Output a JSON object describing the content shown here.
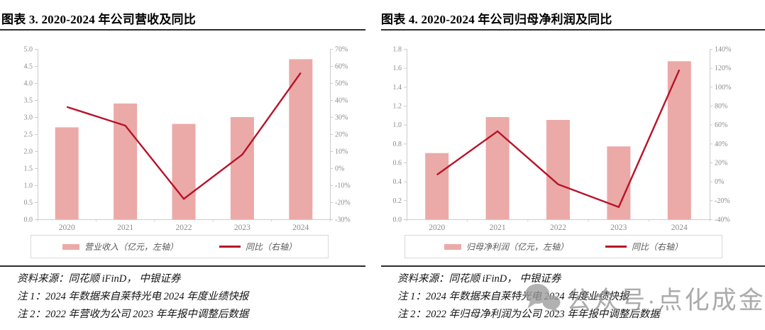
{
  "watermark": {
    "text": "公众号·点化成金"
  },
  "colors": {
    "bar": "#ebaaa7",
    "line": "#b81228",
    "axis": "#cccccc",
    "tick_text": "#8c8c8c",
    "title_text": "#000000",
    "note_text": "#141414",
    "rule_dark": "#2e2e2e",
    "legend_border": "#d9d9d9",
    "legend_text": "#595959",
    "watermark": "#949494"
  },
  "panels": [
    {
      "title": "图表 3. 2020-2024 年公司营收及同比",
      "legend": [
        {
          "label": "营业收入（亿元，左轴）",
          "type": "bar"
        },
        {
          "label": "同比（右轴）",
          "type": "line"
        }
      ],
      "source": "资料来源：同花顺 iFinD，  中银证券",
      "notes": [
        "注 1：2024 年数据来自莱特光电 2024 年度业绩快报",
        "注 2：2022 年营收为公司 2023 年年报中调整后数据"
      ]
    },
    {
      "title": "图表 4. 2020-2024 年公司归母净利润及同比",
      "legend": [
        {
          "label": "归母净利润（亿元，左轴）",
          "type": "bar"
        },
        {
          "label": "同比（右轴）",
          "type": "line"
        }
      ],
      "source": "资料来源：同花顺 iFinD，  中银证券",
      "notes": [
        "注 1：2024 年数据来自莱特光电 2024 年度业绩快报",
        "注 2：2022 年归母净利润为公司 2023 年年报中调整后数据"
      ]
    }
  ],
  "chart_data": [
    {
      "type": "bar+line",
      "title": "图表 3. 2020-2024 年公司营收及同比",
      "categories": [
        "2020",
        "2021",
        "2022",
        "2023",
        "2024"
      ],
      "series": [
        {
          "name": "营业收入（亿元，左轴）",
          "type": "bar",
          "axis": "left",
          "unit": "亿元",
          "values": [
            2.7,
            3.4,
            2.8,
            3.0,
            4.7
          ]
        },
        {
          "name": "同比（右轴）",
          "type": "line",
          "axis": "right",
          "unit": "%",
          "values": [
            36,
            25,
            -18,
            8,
            56
          ]
        }
      ],
      "left_axis": {
        "min": 0.0,
        "max": 5.0,
        "step": 0.5,
        "format": "one-decimal"
      },
      "right_axis": {
        "min": -30,
        "max": 70,
        "step": 10,
        "format": "percent"
      },
      "grid": false,
      "legend_position": "bottom",
      "xlabel": "",
      "ylabel": ""
    },
    {
      "type": "bar+line",
      "title": "图表 4. 2020-2024 年公司归母净利润及同比",
      "categories": [
        "2020",
        "2021",
        "2022",
        "2023",
        "2024"
      ],
      "series": [
        {
          "name": "归母净利润（亿元，左轴）",
          "type": "bar",
          "axis": "left",
          "unit": "亿元",
          "values": [
            0.7,
            1.08,
            1.05,
            0.77,
            1.67
          ]
        },
        {
          "name": "同比（右轴）",
          "type": "line",
          "axis": "right",
          "unit": "%",
          "values": [
            7,
            53,
            -3,
            -27,
            118
          ]
        }
      ],
      "left_axis": {
        "min": 0.0,
        "max": 1.8,
        "step": 0.2,
        "format": "one-decimal"
      },
      "right_axis": {
        "min": -40,
        "max": 140,
        "step": 20,
        "format": "percent"
      },
      "grid": false,
      "legend_position": "bottom",
      "xlabel": "",
      "ylabel": ""
    }
  ]
}
